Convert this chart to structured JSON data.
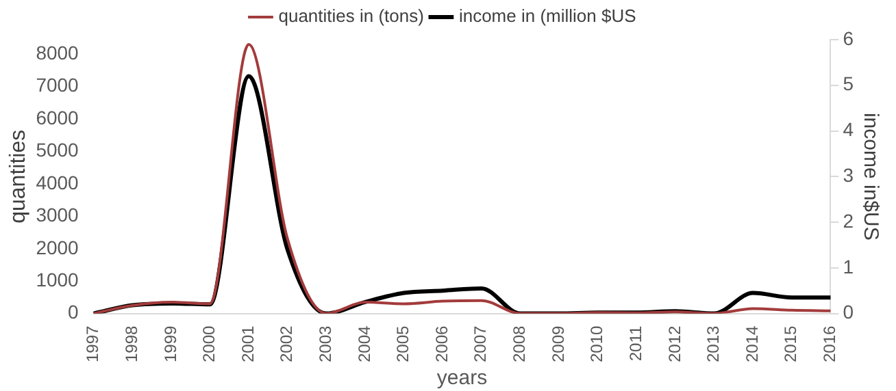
{
  "chart_data": {
    "type": "line",
    "xlabel": "years",
    "ylabel": "quantities",
    "y2label": "income in$US",
    "categories": [
      "1997",
      "1998",
      "1999",
      "2000",
      "2001",
      "2002",
      "2003",
      "2004",
      "2005",
      "2006",
      "2007",
      "2008",
      "2009",
      "2010",
      "2011",
      "2012",
      "2013",
      "2014",
      "2015",
      "2016"
    ],
    "series": [
      {
        "name": "quantities in (tons)",
        "color": "#a33b3b",
        "values": [
          0,
          250,
          350,
          300,
          8300,
          2300,
          0,
          350,
          300,
          380,
          400,
          0,
          0,
          30,
          20,
          50,
          0,
          150,
          100,
          80
        ]
      },
      {
        "name": "income in (million $US",
        "color": "#000000",
        "axis": "y2",
        "values": [
          0,
          0.18,
          0.22,
          0.2,
          5.2,
          1.4,
          0,
          0.25,
          0.45,
          0.5,
          0.55,
          0,
          0,
          0.02,
          0.02,
          0.05,
          0,
          0.45,
          0.35,
          0.35
        ]
      }
    ],
    "ylim": [
      0,
      8450
    ],
    "yticks": [
      0,
      1000,
      2000,
      3000,
      4000,
      5000,
      6000,
      7000,
      8000
    ],
    "y2lim": [
      0,
      6
    ],
    "y2ticks": [
      0,
      1,
      2,
      3,
      4,
      5,
      6
    ],
    "grid": false,
    "legend": "top",
    "marker": "none",
    "line_style": "solid"
  }
}
